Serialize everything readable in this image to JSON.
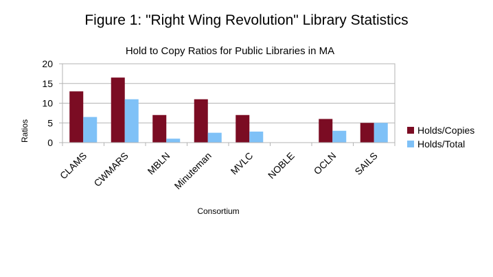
{
  "figure_title": "Figure 1: \"Right Wing Revolution\" Library Statistics",
  "chart_data": {
    "type": "bar",
    "title": "Hold to Copy Ratios for Public Libraries in MA",
    "xlabel": "Consortium",
    "ylabel": "Ratios",
    "ylim": [
      0,
      20
    ],
    "yticks": [
      0,
      5,
      10,
      15,
      20
    ],
    "grid": true,
    "legend_position": "right",
    "categories": [
      "CLAMS",
      "CWMARS",
      "MBLN",
      "Minuteman",
      "MVLC",
      "NOBLE",
      "OCLN",
      "SAILS"
    ],
    "series": [
      {
        "name": "Holds/Copies",
        "color": "#7b0c23",
        "values": [
          13,
          16.5,
          7,
          11,
          7,
          0,
          6,
          5
        ]
      },
      {
        "name": "Holds/Total",
        "color": "#7fc1f7",
        "values": [
          6.5,
          11,
          1,
          2.5,
          2.8,
          0,
          3,
          5
        ]
      }
    ]
  }
}
